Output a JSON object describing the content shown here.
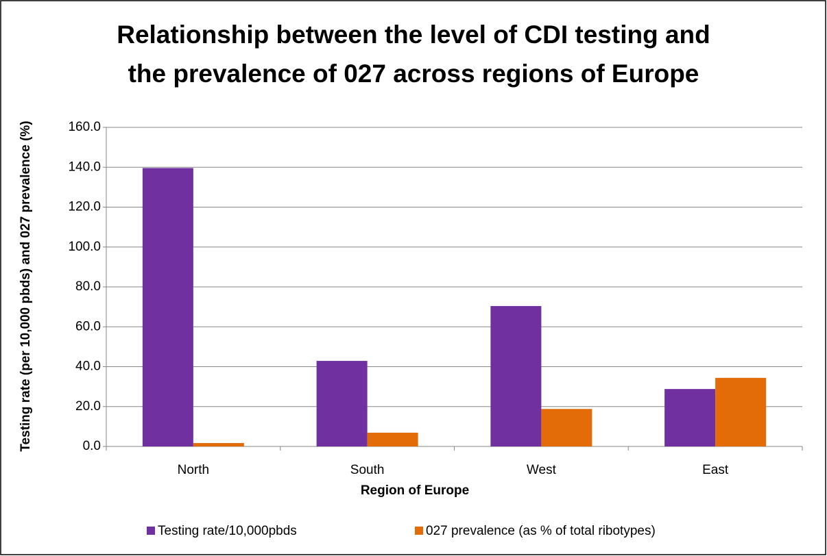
{
  "chart_data": {
    "type": "bar",
    "title": "Relationship between the level of CDI testing and the prevalence of 027 across regions of Europe",
    "x_label": "Region of Europe",
    "y_label": "Testing rate (per 10,000 pbds) and 027 prevalence (%)",
    "categories": [
      "North",
      "South",
      "West",
      "East"
    ],
    "series": [
      {
        "name": "Testing rate/10,000pbds",
        "color": "#7030a0",
        "values": [
          139.6,
          42.9,
          70.4,
          28.8
        ]
      },
      {
        "name": "027 prevalence (as % of total ribotypes)",
        "color": "#e36c09",
        "values": [
          1.7,
          6.9,
          18.8,
          34.4
        ]
      }
    ],
    "ylim": [
      0,
      160
    ],
    "yticks": [
      {
        "value": 0,
        "label": "0.0"
      },
      {
        "value": 20,
        "label": "20.0"
      },
      {
        "value": 40,
        "label": "40.0"
      },
      {
        "value": 60,
        "label": "60.0"
      },
      {
        "value": 80,
        "label": "80.0"
      },
      {
        "value": 100,
        "label": "100.0"
      },
      {
        "value": 120,
        "label": "120.0"
      },
      {
        "value": 140,
        "label": "140.0"
      },
      {
        "value": 160,
        "label": "160.0"
      }
    ],
    "grid": true,
    "legend": "bottom"
  }
}
